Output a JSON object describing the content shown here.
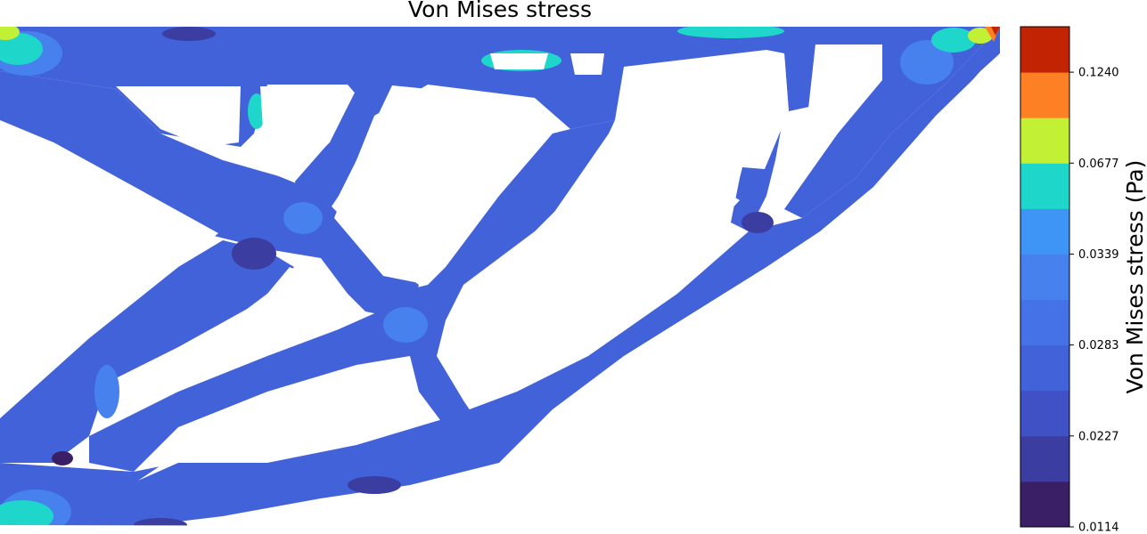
{
  "chart_data": {
    "type": "heatmap",
    "title": "Von Mises stress",
    "colorbar": {
      "label": "Von Mises stress (Pa)",
      "tick_labels": [
        "0.1240",
        "0.0677",
        "0.0339",
        "0.0283",
        "0.0227",
        "0.0114"
      ],
      "tick_values": [
        0.124,
        0.0677,
        0.0339,
        0.0283,
        0.0227,
        0.0114
      ],
      "levels": [
        {
          "color": "#3b1f66"
        },
        {
          "color": "#3b3ea0"
        },
        {
          "color": "#3f51c4"
        },
        {
          "color": "#4262d9"
        },
        {
          "color": "#4572e6"
        },
        {
          "color": "#4681ee"
        },
        {
          "color": "#3e95f5"
        },
        {
          "color": "#1fd6cb"
        },
        {
          "color": "#c2f034"
        },
        {
          "color": "#fd8124"
        },
        {
          "color": "#c22403"
        }
      ]
    },
    "field_description_colors": {
      "background": "#ffffff",
      "dominant": "#4262d9",
      "low": "#3b3ea0",
      "medium": "#4681ee",
      "high": "#1fd6cb",
      "peak": "#c22403"
    }
  }
}
